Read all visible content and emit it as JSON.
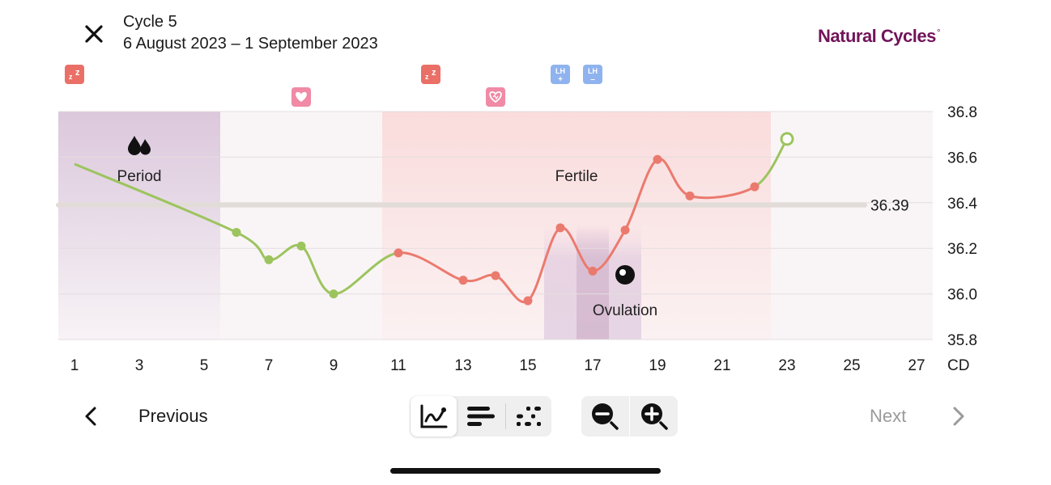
{
  "header": {
    "cycle_title": "Cycle 5",
    "date_range": "6 August 2023 – 1 September 2023",
    "brand": "Natural Cycles",
    "brand_mark": "°"
  },
  "chart_data": {
    "type": "line",
    "x_unit_label": "CD",
    "x_ticks": [
      "1",
      "3",
      "5",
      "7",
      "9",
      "11",
      "13",
      "15",
      "17",
      "19",
      "21",
      "23",
      "25",
      "27"
    ],
    "y_ticks": [
      "36.8",
      "36.6",
      "36.4",
      "36.2",
      "36.0",
      "35.8"
    ],
    "xlim": [
      1,
      28
    ],
    "ylim": [
      35.8,
      36.8
    ],
    "grid": true,
    "cover_line": {
      "value": 36.39,
      "label": "36.39"
    },
    "phases": [
      {
        "name": "period",
        "label": "Period",
        "from": 1,
        "to": 6,
        "color": "#dcc8dc",
        "icon": "drops-icon"
      },
      {
        "name": "fertile",
        "label": "Fertile",
        "from": 11,
        "to": 23,
        "color": "#f9dcdc"
      },
      {
        "name": "ovulation",
        "label": "Ovulation",
        "from": 16,
        "to": 19,
        "color": "#e4cfe0",
        "icon": "ovulation-icon"
      }
    ],
    "series": [
      {
        "color_infertile": "#9cc45e",
        "color_fertile": "#eb7a6e",
        "points": [
          {
            "x": 1,
            "y": 36.57,
            "marker": false
          },
          {
            "x": 6,
            "y": 36.27
          },
          {
            "x": 7,
            "y": 36.15
          },
          {
            "x": 8,
            "y": 36.21
          },
          {
            "x": 9,
            "y": 36.0
          },
          {
            "x": 11,
            "y": 36.18
          },
          {
            "x": 13,
            "y": 36.06
          },
          {
            "x": 14,
            "y": 36.08
          },
          {
            "x": 15,
            "y": 35.97
          },
          {
            "x": 16,
            "y": 36.29
          },
          {
            "x": 17,
            "y": 36.1
          },
          {
            "x": 18,
            "y": 36.28
          },
          {
            "x": 19,
            "y": 36.59
          },
          {
            "x": 20,
            "y": 36.43
          },
          {
            "x": 22,
            "y": 36.47
          },
          {
            "x": 23,
            "y": 36.68,
            "open": true
          }
        ]
      }
    ],
    "markers": [
      {
        "x": 1,
        "type": "sleep-icon",
        "color": "#ea6f67",
        "row": 1
      },
      {
        "x": 8,
        "type": "heart-icon",
        "color": "#f08aa5",
        "row": 2
      },
      {
        "x": 12,
        "type": "sleep-icon",
        "color": "#ea6f67",
        "row": 1
      },
      {
        "x": 14,
        "type": "heart-outline-icon",
        "color": "#f08aa5",
        "row": 2
      },
      {
        "x": 16,
        "type": "lh-positive-icon",
        "color": "#8fb3ee",
        "row": 1,
        "label": "LH",
        "sign": "+"
      },
      {
        "x": 17,
        "type": "lh-negative-icon",
        "color": "#8fb3ee",
        "row": 1,
        "label": "LH",
        "sign": "–"
      }
    ]
  },
  "nav": {
    "previous_label": "Previous",
    "next_label": "Next"
  },
  "toolbar": {
    "views": [
      {
        "name": "graph-view-icon",
        "active": true
      },
      {
        "name": "bars-view-icon",
        "active": false
      },
      {
        "name": "dots-view-icon",
        "active": false
      }
    ],
    "zoom": [
      "zoom-out-icon",
      "zoom-in-icon"
    ]
  }
}
